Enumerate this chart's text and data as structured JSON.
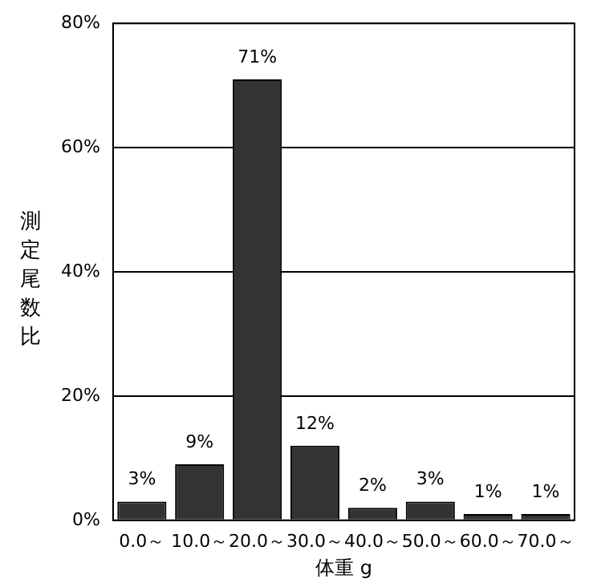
{
  "chart_data": {
    "type": "bar",
    "xlabel": "体重 g",
    "ylabel": "測定尾数比",
    "categories": [
      "0.0～",
      "10.0～",
      "20.0～",
      "30.0～",
      "40.0～",
      "50.0～",
      "60.0～",
      "70.0～"
    ],
    "values": [
      3,
      9,
      71,
      12,
      2,
      3,
      1,
      1
    ],
    "value_labels": [
      "3%",
      "9%",
      "71%",
      "12%",
      "2%",
      "3%",
      "1%",
      "1%"
    ],
    "color": "#333333",
    "ylim": [
      0,
      80
    ],
    "yticks": [
      {
        "value": 0,
        "label": "0%"
      },
      {
        "value": 20,
        "label": "20%"
      },
      {
        "value": 40,
        "label": "40%"
      },
      {
        "value": 60,
        "label": "60%"
      },
      {
        "value": 80,
        "label": "80%"
      }
    ],
    "grid": "y",
    "legend": false
  }
}
